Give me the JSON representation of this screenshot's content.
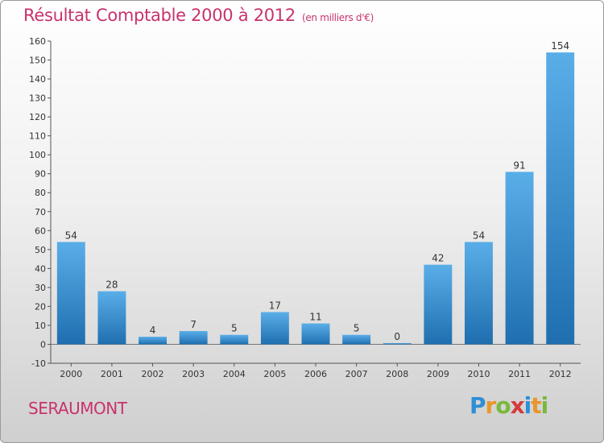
{
  "header": {
    "title": "Résultat Comptable 2000 à 2012",
    "subtitle": "(en milliers d'€)"
  },
  "footer": {
    "town": "SERAUMONT",
    "logo": [
      "P",
      "r",
      "o",
      "x",
      "i",
      "t",
      "i"
    ]
  },
  "colors": {
    "accent": "#c8326e",
    "bar_top": "#5aaee8",
    "bar_bottom": "#1f6fb0"
  },
  "chart_data": {
    "type": "bar",
    "title": "Résultat Comptable 2000 à 2012",
    "subtitle": "(en milliers d'€)",
    "categories": [
      "2000",
      "2001",
      "2002",
      "2003",
      "2004",
      "2005",
      "2006",
      "2007",
      "2008",
      "2009",
      "2010",
      "2011",
      "2012"
    ],
    "values": [
      54,
      28,
      4,
      7,
      5,
      17,
      11,
      5,
      0,
      42,
      54,
      91,
      154
    ],
    "ylim": [
      -10,
      160
    ],
    "yticks": [
      -10,
      0,
      10,
      20,
      30,
      40,
      50,
      60,
      70,
      80,
      90,
      100,
      110,
      120,
      130,
      140,
      150,
      160
    ],
    "grid": false,
    "legend": "none"
  }
}
